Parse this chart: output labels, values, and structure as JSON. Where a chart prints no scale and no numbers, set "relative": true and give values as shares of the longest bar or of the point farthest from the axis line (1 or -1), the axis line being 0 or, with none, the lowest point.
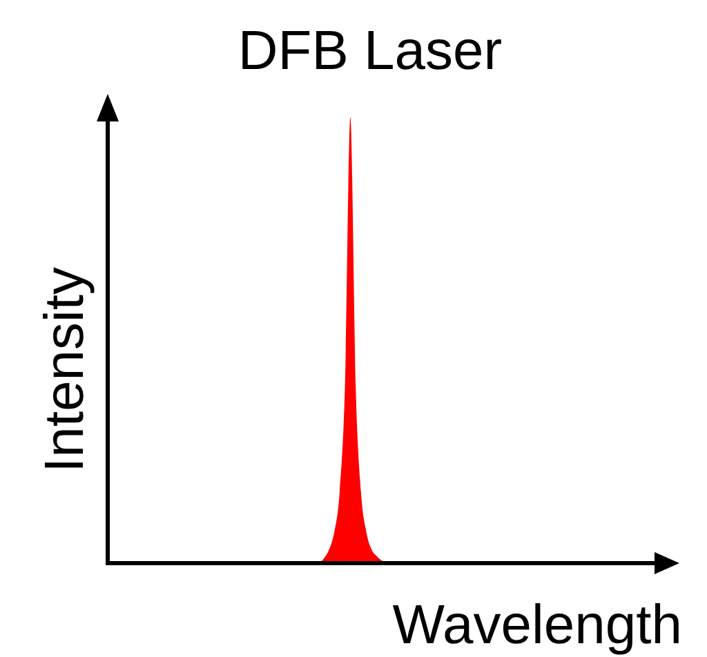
{
  "chart_data": {
    "type": "area",
    "title": "DFB Laser",
    "xlabel": "Wavelength",
    "ylabel": "Intensity",
    "relative": true,
    "categories": [
      null,
      null,
      null,
      null,
      null,
      null,
      null,
      null,
      null,
      null,
      null,
      null,
      null,
      null,
      null,
      null,
      null,
      null,
      null,
      null,
      null,
      null,
      null,
      null,
      null,
      null,
      null,
      null,
      null,
      null,
      null,
      null,
      null,
      null,
      null,
      null,
      null,
      null,
      null,
      null,
      null,
      null,
      null,
      null,
      null,
      null,
      null,
      null,
      null,
      null,
      null,
      null,
      null,
      null,
      null,
      null,
      null,
      null,
      null,
      null,
      null,
      null,
      null,
      null,
      null,
      null,
      null,
      null,
      null,
      null,
      null,
      null,
      null,
      null,
      null,
      null,
      null,
      null,
      null,
      null,
      null,
      null,
      null,
      null,
      null,
      null,
      null,
      null,
      null,
      null,
      null,
      null,
      null,
      null,
      null,
      null,
      null,
      null,
      null,
      null,
      null
    ],
    "series": [
      {
        "color": "#ff0000",
        "values": [
          0,
          0,
          0,
          0,
          0,
          0,
          0,
          0,
          0,
          0,
          0,
          0,
          0,
          0,
          0,
          0,
          0,
          0,
          0,
          0,
          0,
          0,
          0,
          0,
          0,
          0,
          0,
          0,
          0,
          0,
          0,
          0,
          0,
          0,
          0,
          0,
          0,
          0,
          0,
          0,
          0.01,
          0.03,
          0.07,
          0.16,
          0.4,
          1,
          0.4,
          0.16,
          0.07,
          0.03,
          0.015,
          0.005,
          0,
          0,
          0,
          0,
          0,
          0,
          0,
          0,
          0,
          0,
          0,
          0,
          0,
          0,
          0,
          0,
          0,
          0,
          0,
          0,
          0,
          0,
          0,
          0,
          0,
          0,
          0,
          0,
          0,
          0,
          0,
          0,
          0,
          0,
          0,
          0,
          0,
          0,
          0,
          0,
          0,
          0,
          0,
          0,
          0,
          0,
          0,
          0,
          0
        ]
      }
    ]
  }
}
